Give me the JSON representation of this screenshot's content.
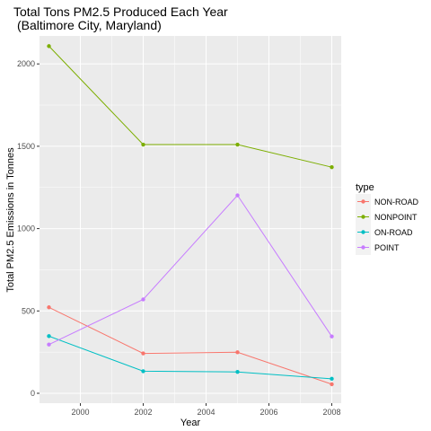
{
  "chart_data": {
    "type": "line",
    "title": "Total Tons PM2.5 Produced Each Year",
    "subtitle": "(Baltimore City, Maryland)",
    "xlabel": "Year",
    "ylabel": "Total PM2.5 Emissions in Tonnes",
    "x": [
      1999,
      2002,
      2005,
      2008
    ],
    "xticks": [
      "2000",
      "2002",
      "2004",
      "2006",
      "2008"
    ],
    "xlim": [
      1998.7,
      2008.3
    ],
    "yticks": [
      "0",
      "500",
      "1000",
      "1500",
      "2000"
    ],
    "ylim": [
      -60,
      2170
    ],
    "grid": true,
    "legend_title": "type",
    "legend_position": "right",
    "series": [
      {
        "name": "NON-ROAD",
        "color": "#F8766D",
        "values": [
          522,
          242,
          249,
          55
        ]
      },
      {
        "name": "NONPOINT",
        "color": "#7CAE00",
        "values": [
          2108,
          1510,
          1510,
          1373
        ]
      },
      {
        "name": "ON-ROAD",
        "color": "#00BFC4",
        "values": [
          347,
          134,
          130,
          88
        ]
      },
      {
        "name": "POINT",
        "color": "#C77CFF",
        "values": [
          296,
          570,
          1202,
          345
        ]
      }
    ]
  }
}
